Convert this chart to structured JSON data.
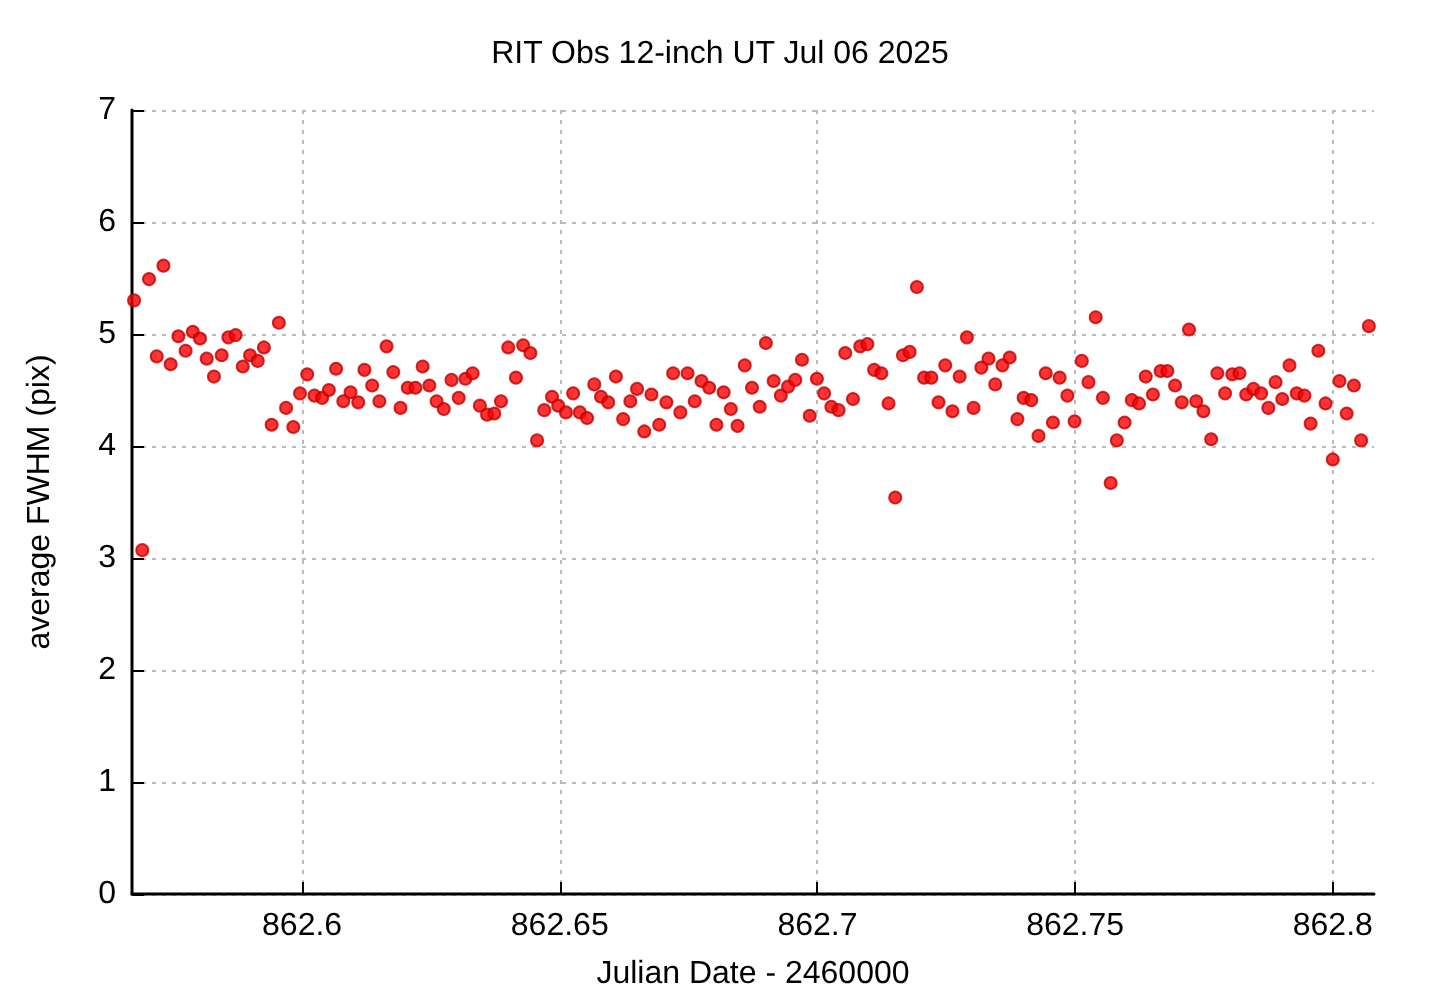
{
  "chart_data": {
    "type": "scatter",
    "title": "RIT Obs 12-inch UT Jul 06 2025",
    "xlabel": "Julian Date - 2460000",
    "ylabel": "average FWHM (pix)",
    "xlim": [
      862.567,
      862.808
    ],
    "ylim": [
      0,
      7
    ],
    "xticks": [
      862.6,
      862.65,
      862.7,
      862.75,
      862.8
    ],
    "yticks": [
      0,
      1,
      2,
      3,
      4,
      5,
      6,
      7
    ],
    "grid": true,
    "marker": "circle",
    "series": [
      {
        "color": "#ff0000",
        "x": [
          862.5674,
          862.569,
          862.5703,
          862.5718,
          862.5731,
          862.5745,
          862.576,
          862.5774,
          862.5788,
          862.5802,
          862.5815,
          862.5829,
          862.5844,
          862.5857,
          862.5871,
          862.5885,
          862.5899,
          862.5914,
          862.5926,
          862.5941,
          862.5955,
          862.5969,
          862.5983,
          862.5996,
          862.601,
          862.6024,
          862.6039,
          862.6052,
          862.6066,
          862.608,
          862.6094,
          862.6109,
          862.6121,
          862.6136,
          862.615,
          862.6164,
          862.6177,
          862.6191,
          862.6205,
          862.622,
          862.6234,
          862.6247,
          862.6261,
          862.6275,
          862.629,
          862.6304,
          862.6317,
          862.6331,
          862.6345,
          862.6359,
          862.6373,
          862.6386,
          862.64,
          862.6415,
          862.6429,
          862.6443,
          862.6456,
          862.647,
          862.6485,
          862.6497,
          862.6512,
          862.6526,
          862.6539,
          862.6553,
          862.6567,
          862.658,
          862.6594,
          862.6609,
          862.6623,
          862.6637,
          862.665,
          862.6664,
          862.6678,
          862.6693,
          862.6707,
          862.672,
          862.6734,
          862.6748,
          862.6762,
          862.6775,
          862.679,
          862.6804,
          862.6818,
          862.6832,
          862.6845,
          862.6859,
          862.6873,
          862.6888,
          862.69,
          862.6915,
          862.6929,
          862.6943,
          862.6957,
          862.697,
          862.6985,
          862.6999,
          862.7013,
          862.7027,
          862.7041,
          862.7054,
          862.7069,
          862.7083,
          862.7097,
          862.711,
          862.7124,
          862.7138,
          862.7151,
          862.7166,
          862.7179,
          862.7193,
          862.7207,
          862.7221,
          862.7235,
          862.7248,
          862.7262,
          862.7276,
          862.729,
          862.7303,
          862.7318,
          862.7332,
          862.7345,
          862.7359,
          862.7373,
          862.7388,
          862.74,
          862.7415,
          862.7429,
          862.7443,
          862.7457,
          862.747,
          862.7485,
          862.7499,
          862.7513,
          862.7526,
          862.754,
          862.7554,
          862.7569,
          862.7581,
          862.7596,
          862.761,
          862.7624,
          862.7637,
          862.7651,
          862.7666,
          862.7679,
          862.7694,
          862.7707,
          862.7721,
          862.7735,
          862.7749,
          862.7764,
          862.7776,
          862.7791,
          862.7805,
          862.7819,
          862.7832,
          862.7846,
          862.7861,
          862.7875,
          862.7889,
          862.7902,
          862.7916,
          862.793,
          862.7945,
          862.7957,
          862.7972,
          862.7986,
          862.8,
          862.8013,
          862.8027,
          862.8041,
          862.8055,
          862.807
        ],
        "values": [
          5.3,
          3.07,
          5.49,
          4.8,
          5.61,
          4.73,
          4.98,
          4.85,
          5.02,
          4.96,
          4.78,
          4.62,
          4.81,
          4.97,
          4.99,
          4.71,
          4.81,
          4.76,
          4.88,
          4.19,
          5.1,
          4.34,
          4.17,
          4.47,
          4.64,
          4.45,
          4.43,
          4.5,
          4.69,
          4.4,
          4.48,
          4.39,
          4.68,
          4.54,
          4.4,
          4.89,
          4.66,
          4.34,
          4.52,
          4.52,
          4.71,
          4.54,
          4.4,
          4.33,
          4.59,
          4.43,
          4.6,
          4.65,
          4.36,
          4.28,
          4.29,
          4.4,
          4.88,
          4.61,
          4.9,
          4.83,
          4.05,
          4.32,
          4.44,
          4.36,
          4.3,
          4.47,
          4.3,
          4.25,
          4.55,
          4.44,
          4.39,
          4.62,
          4.24,
          4.4,
          4.51,
          4.13,
          4.46,
          4.19,
          4.39,
          4.65,
          4.3,
          4.65,
          4.4,
          4.58,
          4.52,
          4.19,
          4.48,
          4.33,
          4.18,
          4.72,
          4.52,
          4.35,
          4.92,
          4.58,
          4.45,
          4.53,
          4.59,
          4.77,
          4.27,
          4.6,
          4.47,
          4.35,
          4.32,
          4.83,
          4.42,
          4.89,
          4.91,
          4.68,
          4.65,
          4.38,
          3.54,
          4.81,
          4.84,
          5.42,
          4.61,
          4.61,
          4.39,
          4.72,
          4.31,
          4.62,
          4.97,
          4.34,
          4.7,
          4.78,
          4.55,
          4.72,
          4.79,
          4.24,
          4.43,
          4.41,
          4.09,
          4.65,
          4.21,
          4.61,
          4.45,
          4.22,
          4.76,
          4.57,
          5.15,
          4.43,
          3.67,
          4.05,
          4.21,
          4.41,
          4.38,
          4.62,
          4.46,
          4.67,
          4.67,
          4.54,
          4.39,
          5.04,
          4.4,
          4.31,
          4.06,
          4.65,
          4.47,
          4.64,
          4.65,
          4.46,
          4.51,
          4.47,
          4.34,
          4.57,
          4.42,
          4.72,
          4.47,
          4.45,
          4.2,
          4.85,
          4.38,
          3.88,
          4.58,
          4.29,
          4.54,
          4.05,
          5.07
        ]
      }
    ]
  }
}
